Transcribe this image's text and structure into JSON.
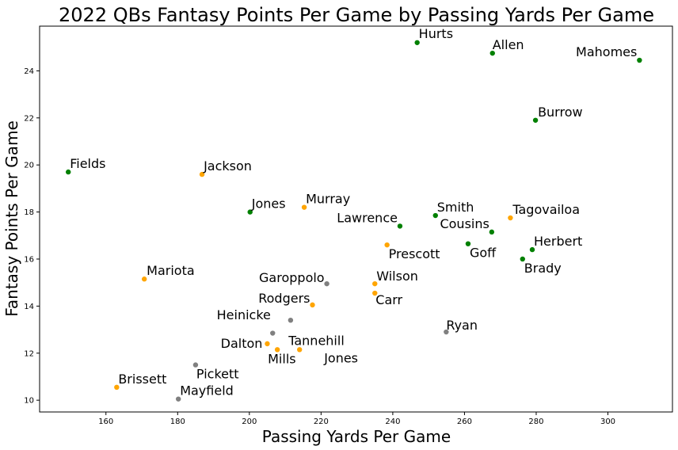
{
  "chart_data": {
    "type": "scatter",
    "title": "2022 QBs Fantasy Points Per Game by Passing Yards Per Game",
    "xlabel": "Passing Yards Per Game",
    "ylabel": "Fantasy Points Per Game",
    "xlim": [
      141.5,
      318
    ],
    "ylim": [
      9.5,
      25.9
    ],
    "xticks": [
      160,
      180,
      200,
      220,
      240,
      260,
      280,
      300
    ],
    "yticks": [
      10,
      12,
      14,
      16,
      18,
      20,
      22,
      24
    ],
    "grid": false,
    "colors": {
      "green": "#008000",
      "orange": "#ffa500",
      "gray": "#808080"
    },
    "points": [
      {
        "name": "Hurts",
        "x": 246.8,
        "y": 25.2,
        "color": "green"
      },
      {
        "name": "Allen",
        "x": 267.8,
        "y": 24.75,
        "color": "green"
      },
      {
        "name": "Mahomes",
        "x": 308.8,
        "y": 24.45,
        "color": "green"
      },
      {
        "name": "Burrow",
        "x": 279.8,
        "y": 21.9,
        "color": "green"
      },
      {
        "name": "Fields",
        "x": 149.5,
        "y": 19.7,
        "color": "green"
      },
      {
        "name": "Jackson",
        "x": 186.8,
        "y": 19.6,
        "color": "orange"
      },
      {
        "name": "Jones",
        "x": 200.2,
        "y": 18.0,
        "color": "green"
      },
      {
        "name": "Murray",
        "x": 215.3,
        "y": 18.2,
        "color": "orange"
      },
      {
        "name": "Smith",
        "x": 251.9,
        "y": 17.85,
        "color": "green"
      },
      {
        "name": "Tagovailoa",
        "x": 272.8,
        "y": 17.75,
        "color": "orange"
      },
      {
        "name": "Lawrence",
        "x": 242.0,
        "y": 17.4,
        "color": "green"
      },
      {
        "name": "Cousins",
        "x": 267.6,
        "y": 17.15,
        "color": "green"
      },
      {
        "name": "Prescott",
        "x": 238.4,
        "y": 16.6,
        "color": "orange"
      },
      {
        "name": "Goff",
        "x": 261.0,
        "y": 16.65,
        "color": "green"
      },
      {
        "name": "Herbert",
        "x": 278.9,
        "y": 16.4,
        "color": "green"
      },
      {
        "name": "Brady",
        "x": 276.2,
        "y": 16.0,
        "color": "green"
      },
      {
        "name": "Mariota",
        "x": 170.7,
        "y": 15.15,
        "color": "orange"
      },
      {
        "name": "Garoppolo",
        "x": 221.6,
        "y": 14.95,
        "color": "gray"
      },
      {
        "name": "Wilson",
        "x": 235.0,
        "y": 14.95,
        "color": "orange"
      },
      {
        "name": "Carr",
        "x": 235.0,
        "y": 14.55,
        "color": "orange"
      },
      {
        "name": "Rodgers",
        "x": 217.6,
        "y": 14.05,
        "color": "orange"
      },
      {
        "name": "Heinicke",
        "x": 211.5,
        "y": 13.4,
        "color": "gray"
      },
      {
        "name": "Tannehill",
        "x": 206.5,
        "y": 12.85,
        "color": "gray"
      },
      {
        "name": "Ryan",
        "x": 254.9,
        "y": 12.9,
        "color": "gray"
      },
      {
        "name": "Dalton",
        "x": 205.0,
        "y": 12.4,
        "color": "orange"
      },
      {
        "name": "Mills",
        "x": 207.8,
        "y": 12.15,
        "color": "orange"
      },
      {
        "name": "Jones",
        "x": 214.0,
        "y": 12.15,
        "color": "orange"
      },
      {
        "name": "Pickett",
        "x": 185.0,
        "y": 11.5,
        "color": "gray"
      },
      {
        "name": "Brissett",
        "x": 163.0,
        "y": 10.55,
        "color": "orange"
      },
      {
        "name": "Mayfield",
        "x": 180.2,
        "y": 10.05,
        "color": "gray"
      }
    ]
  }
}
